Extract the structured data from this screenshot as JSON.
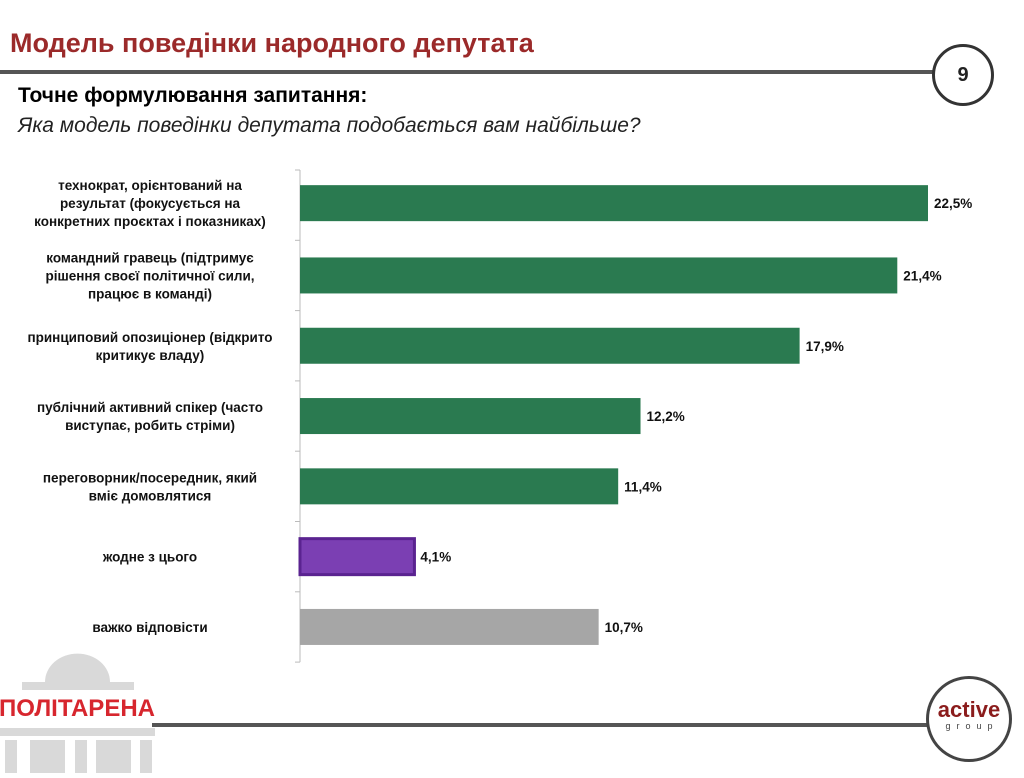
{
  "header": {
    "title": "Модель поведінки народного депутата",
    "page_number": "9"
  },
  "question": {
    "heading": "Точне формулювання запитання:",
    "text": "Яка модель поведінки депутата подобається вам найбільше?"
  },
  "chart_data": {
    "type": "bar",
    "orientation": "horizontal",
    "categories": [
      "технократ, орієнтований на результат (фокусується на конкретних проєктах і показниках)",
      "командний гравець (підтримує рішення своєї політичної сили, працює в команді)",
      "принциповий опозиціонер (відкрито критикує владу)",
      "публічний активний спікер (часто виступає, робить стріми)",
      "переговорник/посередник, який вміє домовлятися",
      "жодне з цього",
      "важко відповісти"
    ],
    "category_lines": [
      [
        "технократ, орієнтований на",
        "результат (фокусується на",
        "конкретних проєктах і показниках)"
      ],
      [
        "командний гравець (підтримує",
        "рішення своєї політичної сили,",
        "працює в команді)"
      ],
      [
        "принциповий опозиціонер (відкрито",
        "критикує владу)"
      ],
      [
        "публічний активний спікер (часто",
        "виступає, робить стріми)"
      ],
      [
        "переговорник/посередник, який",
        "вміє домовлятися"
      ],
      [
        "жодне з цього"
      ],
      [
        "важко відповісти"
      ]
    ],
    "values": [
      22.5,
      21.4,
      17.9,
      12.2,
      11.4,
      4.1,
      10.7
    ],
    "labels": [
      "22,5%",
      "21,4%",
      "17,9%",
      "12,2%",
      "11,4%",
      "4,1%",
      "10,7%"
    ],
    "colors": [
      "#2a7a50",
      "#2a7a50",
      "#2a7a50",
      "#2a7a50",
      "#2a7a50",
      "#7030a0",
      "#a6a6a6"
    ],
    "xlim": [
      0,
      25
    ],
    "grid": false,
    "legend": "none"
  },
  "logos": {
    "left": "ПОЛІТАРЕНА",
    "right_main": "active",
    "right_sub": "group"
  }
}
